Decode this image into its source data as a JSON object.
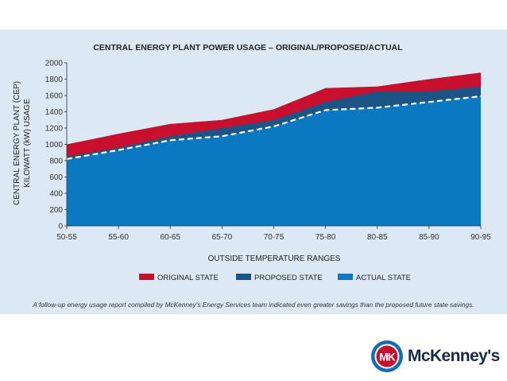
{
  "chart_data": {
    "type": "area",
    "title": "CENTRAL ENERGY PLANT POWER USAGE – ORIGINAL/PROPOSED/ACTUAL",
    "xlabel": "OUTSIDE TEMPERATURE RANGES",
    "ylabel_line1": "CENTRAL ENERGY PLANT (CEP)",
    "ylabel_line2": "KILOWATT (kW) USAGE",
    "ylim": [
      0,
      2000
    ],
    "yticks": [
      "0",
      "200",
      "400",
      "600",
      "800",
      "1000",
      "1200",
      "1400",
      "1600",
      "1800",
      "2000"
    ],
    "categories": [
      "50-55",
      "55-60",
      "60-65",
      "65-70",
      "70-75",
      "75-80",
      "80-85",
      "85-90",
      "90-95"
    ],
    "series": [
      {
        "name": "ORIGINAL STATE",
        "color": "#c8102e",
        "values": [
          1000,
          1130,
          1250,
          1300,
          1430,
          1690,
          1710,
          1800,
          1880
        ]
      },
      {
        "name": "PROPOSED STATE",
        "color": "#1c5485",
        "values": [
          850,
          960,
          1100,
          1200,
          1300,
          1520,
          1650,
          1650,
          1710
        ]
      },
      {
        "name": "ACTUAL STATE",
        "color": "#0b78c2",
        "values": [
          820,
          930,
          1050,
          1100,
          1220,
          1420,
          1450,
          1520,
          1590
        ]
      }
    ],
    "actual_line_style": "white dashed"
  },
  "caption": "A follow-up energy usage report compiled by McKenney's Energy Services team indicated even greater savings than the proposed future state savings.",
  "logo": {
    "mark_text": "MK",
    "name": "McKenney's",
    "colors": {
      "ring": "#0f6fb6",
      "inner": "#c8102e",
      "text": "#1b2a44"
    }
  }
}
